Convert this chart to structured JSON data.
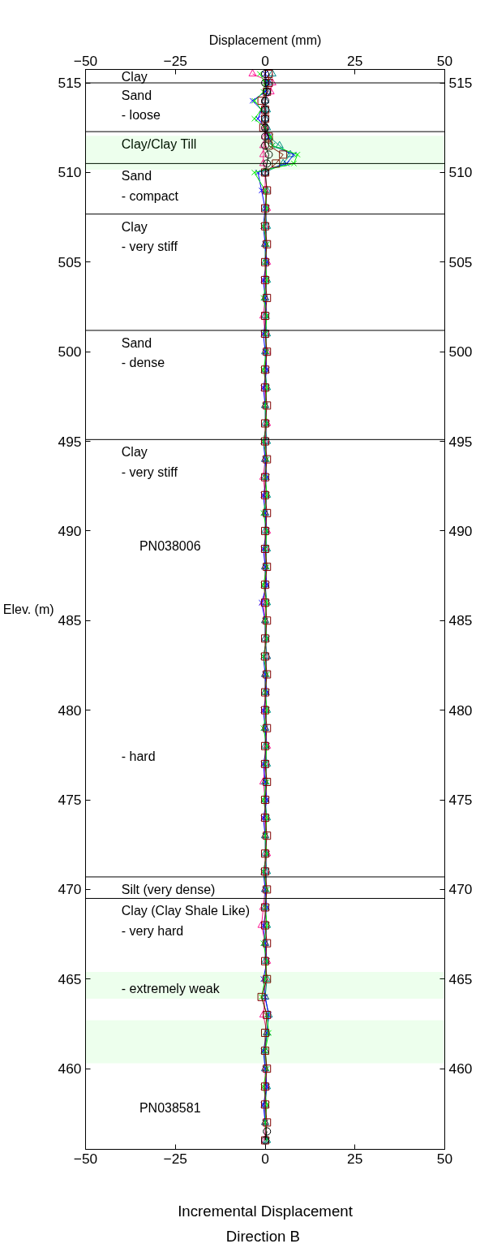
{
  "chart_data": {
    "type": "line",
    "x2label": "Displacement (mm)",
    "xlabel": "Incremental Displacement",
    "ylabel": "Elev. (m)",
    "xlim": [
      -50,
      50
    ],
    "xticks": [
      -50,
      -25,
      0,
      25,
      50
    ],
    "x2lim": [
      -50,
      50
    ],
    "x2ticks": [
      -50,
      -25,
      0,
      25,
      50
    ],
    "ylim": [
      455.5,
      515.75
    ],
    "yticks": [
      460,
      465,
      470,
      475,
      480,
      485,
      490,
      495,
      500,
      505,
      510,
      515
    ],
    "y2lim": [
      455.5,
      515.75
    ],
    "y2ticks": [
      460,
      465,
      470,
      475,
      480,
      485,
      490,
      495,
      500,
      505,
      510,
      515
    ],
    "grid": false,
    "line_style": "solid",
    "series": [
      {
        "color": "#ff1493",
        "marker": "triangle",
        "x": [
          -3.5,
          2,
          1.5,
          0,
          -0.5,
          0,
          0,
          0,
          -0.5,
          -0.5,
          -0.5,
          0,
          0,
          0.5,
          0,
          0,
          0.5,
          0,
          0,
          -0.5,
          0,
          0.5,
          0,
          0,
          0,
          0.5,
          0,
          0,
          -0.5,
          0,
          0,
          0.5,
          0,
          0,
          0,
          -0.5,
          0,
          0,
          0.5,
          0,
          0,
          0,
          0,
          0.5,
          0,
          -0.5,
          0,
          0,
          0,
          0.5,
          0,
          0,
          -0.5,
          -1,
          0,
          0.5,
          0,
          0,
          -0.5,
          0.5,
          0,
          0,
          0,
          0,
          0,
          0
        ],
        "values": [
          515.5,
          515,
          514.5,
          514,
          513.5,
          513,
          512.5,
          512,
          511.5,
          511,
          510.5,
          510,
          509,
          508,
          507,
          506,
          505,
          504,
          503,
          502,
          501,
          500,
          499,
          498,
          497,
          496,
          495,
          494,
          493,
          492,
          491,
          490,
          489,
          488,
          487,
          486,
          485,
          484,
          483,
          482,
          481,
          480,
          479,
          478,
          477,
          476,
          475,
          474,
          473,
          472,
          471,
          470,
          469,
          468,
          467,
          466,
          465,
          464,
          463,
          462,
          461,
          460,
          459,
          458,
          457,
          456
        ]
      },
      {
        "color": "#008b8b",
        "marker": "triangle",
        "x": [
          2,
          1,
          0.5,
          0,
          0.5,
          0,
          0.5,
          1,
          4,
          7,
          5,
          0,
          0.5,
          0,
          0.5,
          0,
          0,
          0.5,
          0,
          0,
          0.5,
          0,
          0,
          0.5,
          0,
          0,
          0.5,
          0,
          0,
          0.5,
          0,
          0,
          0.5,
          0,
          0,
          0.5,
          0,
          0,
          0.5,
          0,
          0,
          0.5,
          0,
          0,
          0.5,
          0,
          0,
          0.5,
          0,
          0,
          0.5,
          0,
          0,
          0.5,
          0,
          0,
          0.5,
          0,
          1,
          0.5,
          0,
          0,
          0.5,
          0,
          0,
          0.5
        ],
        "values": [
          515.5,
          515,
          514.5,
          514,
          513.5,
          513,
          512.5,
          512,
          511.5,
          511,
          510.5,
          510,
          509,
          508,
          507,
          506,
          505,
          504,
          503,
          502,
          501,
          500,
          499,
          498,
          497,
          496,
          495,
          494,
          493,
          492,
          491,
          490,
          489,
          488,
          487,
          486,
          485,
          484,
          483,
          482,
          481,
          480,
          479,
          478,
          477,
          476,
          475,
          474,
          473,
          472,
          471,
          470,
          469,
          468,
          467,
          466,
          465,
          464,
          463,
          462,
          461,
          460,
          459,
          458,
          457,
          456
        ]
      },
      {
        "color": "#0000ff",
        "marker": "cross",
        "x": [
          0,
          0.5,
          0,
          -3.5,
          -1,
          -2,
          0,
          1,
          2,
          8,
          6,
          -2,
          -1,
          0,
          -0.5,
          0,
          0.5,
          -0.5,
          0,
          0.5,
          -0.5,
          0,
          0.5,
          -0.5,
          0,
          0.5,
          -0.5,
          0,
          0.5,
          -0.5,
          0,
          0.5,
          -0.5,
          0,
          0.5,
          -1,
          0,
          0.5,
          -0.5,
          0,
          0.5,
          -0.5,
          0,
          0.5,
          -0.5,
          0,
          0.5,
          -0.5,
          0,
          0.5,
          -0.5,
          0,
          0.5,
          -0.5,
          0,
          0.5,
          -0.5,
          0,
          1,
          0.5,
          -0.5,
          0,
          0.5,
          -0.5,
          0,
          0.5
        ],
        "values": [
          515.5,
          515,
          514.5,
          514,
          513.5,
          513,
          512.5,
          512,
          511.5,
          511,
          510.5,
          510,
          509,
          508,
          507,
          506,
          505,
          504,
          503,
          502,
          501,
          500,
          499,
          498,
          497,
          496,
          495,
          494,
          493,
          492,
          491,
          490,
          489,
          488,
          487,
          486,
          485,
          484,
          483,
          482,
          481,
          480,
          479,
          478,
          477,
          476,
          475,
          474,
          473,
          472,
          471,
          470,
          469,
          468,
          467,
          466,
          465,
          464,
          463,
          462,
          461,
          460,
          459,
          458,
          457,
          456
        ]
      },
      {
        "color": "#00ee00",
        "marker": "cross",
        "x": [
          -1.5,
          0,
          -0.5,
          -3,
          -1,
          -3,
          0,
          1.5,
          2,
          9,
          8,
          -3,
          0,
          0.5,
          -0.5,
          0.5,
          0,
          0.5,
          -0.5,
          0.5,
          0,
          0.5,
          -0.5,
          0.5,
          0,
          0.5,
          -0.5,
          0.5,
          0,
          0.5,
          -0.5,
          0.5,
          0,
          0.5,
          -0.5,
          0.5,
          0,
          0.5,
          -0.5,
          0.5,
          0,
          0.5,
          -0.5,
          0.5,
          0,
          0.5,
          -0.5,
          0.5,
          0,
          0.5,
          -0.5,
          0.5,
          0,
          0.5,
          -0.5,
          0.5,
          0,
          -1,
          0.5,
          1,
          0,
          0.5,
          -0.5,
          0.5,
          0,
          0.5
        ],
        "values": [
          515.5,
          515,
          514.5,
          514,
          513.5,
          513,
          512.5,
          512,
          511.5,
          511,
          510.5,
          510,
          509,
          508,
          507,
          506,
          505,
          504,
          503,
          502,
          501,
          500,
          499,
          498,
          497,
          496,
          495,
          494,
          493,
          492,
          491,
          490,
          489,
          488,
          487,
          486,
          485,
          484,
          483,
          482,
          481,
          480,
          479,
          478,
          477,
          476,
          475,
          474,
          473,
          472,
          471,
          470,
          469,
          468,
          467,
          466,
          465,
          464,
          463,
          462,
          461,
          460,
          459,
          458,
          457,
          456
        ]
      },
      {
        "color": "#800000",
        "marker": "square",
        "x": [
          1,
          1,
          0.5,
          -1,
          0,
          0,
          -0.5,
          1,
          1,
          5,
          3,
          0,
          0.5,
          0,
          0,
          0.5,
          0,
          0,
          0.5,
          0,
          0,
          0.5,
          0,
          0,
          0.5,
          0,
          0,
          0.5,
          0,
          0,
          0.5,
          0,
          0,
          0.5,
          0,
          0,
          0.5,
          0,
          0,
          0.5,
          0,
          0,
          0.5,
          0,
          0,
          0.5,
          0,
          0,
          0.5,
          0,
          0,
          0.5,
          0,
          0,
          0.5,
          0,
          0.5,
          -1,
          0.5,
          0,
          0,
          0.5,
          0,
          0,
          0.5,
          0
        ],
        "values": [
          515.5,
          515,
          514.5,
          514,
          513.5,
          513,
          512.5,
          512,
          511.5,
          511,
          510.5,
          510,
          509,
          508,
          507,
          506,
          505,
          504,
          503,
          502,
          501,
          500,
          499,
          498,
          497,
          496,
          495,
          494,
          493,
          492,
          491,
          490,
          489,
          488,
          487,
          486,
          485,
          484,
          483,
          482,
          481,
          480,
          479,
          478,
          477,
          476,
          475,
          474,
          473,
          472,
          471,
          470,
          469,
          468,
          467,
          466,
          465,
          464,
          463,
          462,
          461,
          460,
          459,
          458,
          457,
          456
        ]
      },
      {
        "color": "#000000",
        "marker": "circle",
        "x": [
          0,
          0,
          0.5,
          0,
          0,
          0,
          0,
          0,
          0,
          1,
          0.5,
          0
        ],
        "values": [
          515.5,
          515,
          514.5,
          514,
          513.5,
          513,
          512.5,
          512,
          511.5,
          511,
          510.5,
          510
        ]
      },
      {
        "color": "#000000",
        "marker": "circle",
        "x": [
          0.5,
          0
        ],
        "values": [
          456.5,
          456
        ]
      }
    ],
    "ref_lines": [
      {
        "axis": "y",
        "value": 515.0,
        "color": "#000000",
        "label": "Sand\n- loose"
      },
      {
        "axis": "y",
        "value": 512.28,
        "color": "#000000",
        "label": "Clay/Clay Till"
      },
      {
        "axis": "y",
        "value": 510.5,
        "color": "#000000",
        "label": "Sand\n- compact"
      },
      {
        "axis": "y",
        "value": 507.68,
        "color": "#000000",
        "label": "Clay\n- very stiff"
      },
      {
        "axis": "y",
        "value": 501.19,
        "color": "#000000",
        "label": "Sand\n- dense"
      },
      {
        "axis": "y",
        "value": 495.1,
        "color": "#000000",
        "label": "Clay\n- very stiff"
      },
      {
        "axis": "y",
        "value": 470.7,
        "color": "#000000",
        "label": "Silt (very dense)"
      },
      {
        "axis": "y",
        "value": 469.5,
        "color": "#000000",
        "label": "Clay (Clay Shale Like)\n-  very hard"
      }
    ],
    "bands": [
      {
        "axis": "y",
        "from": 510.15,
        "to": 512.05,
        "color": "#00ff00"
      },
      {
        "axis": "y",
        "from": 463.9,
        "to": 465.4,
        "color": "#00ff00"
      },
      {
        "axis": "y",
        "from": 460.3,
        "to": 462.7,
        "color": "#00ff00"
      }
    ],
    "annotations": [
      "Clay",
      "PN038006",
      "- hard",
      "- extremely weak",
      "PN038581",
      "Direction  B"
    ]
  }
}
